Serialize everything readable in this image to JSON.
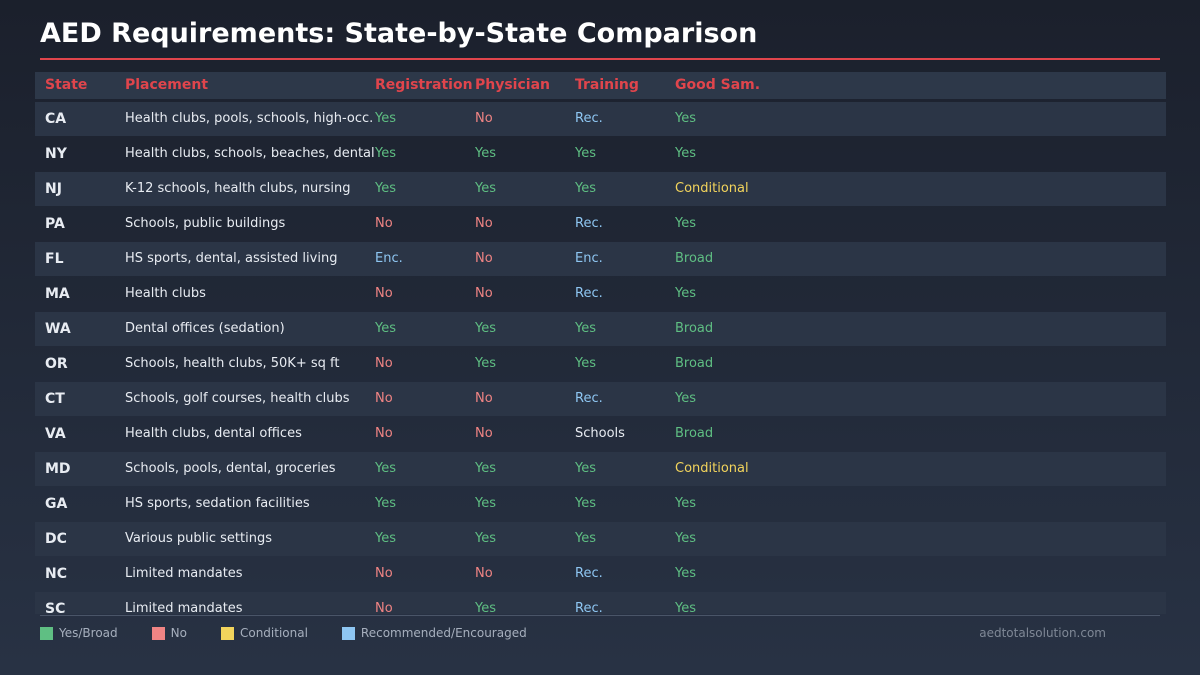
{
  "title": "AED Requirements: State-by-State Comparison",
  "table": {
    "header": [
      "State",
      "Placement",
      "Registration",
      "Physician",
      "Training",
      "Good Sam."
    ],
    "rows": [
      [
        "CA",
        "Health clubs, pools, schools, high-occ.",
        "Yes",
        "No",
        "Rec.",
        "Yes"
      ],
      [
        "NY",
        "Health clubs, schools, beaches, dental",
        "Yes",
        "Yes",
        "Yes",
        "Yes"
      ],
      [
        "NJ",
        "K-12 schools, health clubs, nursing",
        "Yes",
        "Yes",
        "Yes",
        "Conditional"
      ],
      [
        "PA",
        "Schools, public buildings",
        "No",
        "No",
        "Rec.",
        "Yes"
      ],
      [
        "FL",
        "HS sports, dental, assisted living",
        "Enc.",
        "No",
        "Enc.",
        "Broad"
      ],
      [
        "MA",
        "Health clubs",
        "No",
        "No",
        "Rec.",
        "Yes"
      ],
      [
        "WA",
        "Dental offices (sedation)",
        "Yes",
        "Yes",
        "Yes",
        "Broad"
      ],
      [
        "OR",
        "Schools, health clubs, 50K+ sq ft",
        "No",
        "Yes",
        "Yes",
        "Broad"
      ],
      [
        "CT",
        "Schools, golf courses, health clubs",
        "No",
        "No",
        "Rec.",
        "Yes"
      ],
      [
        "VA",
        "Health clubs, dental offices",
        "No",
        "No",
        "Schools",
        "Broad"
      ],
      [
        "MD",
        "Schools, pools, dental, groceries",
        "Yes",
        "Yes",
        "Yes",
        "Conditional"
      ],
      [
        "GA",
        "HS sports, sedation facilities",
        "Yes",
        "Yes",
        "Yes",
        "Yes"
      ],
      [
        "DC",
        "Various public settings",
        "Yes",
        "Yes",
        "Yes",
        "Yes"
      ],
      [
        "NC",
        "Limited mandates",
        "No",
        "No",
        "Rec.",
        "Yes"
      ],
      [
        "SC",
        "Limited mandates",
        "No",
        "Yes",
        "Rec.",
        "Yes"
      ]
    ],
    "cell_colors": [
      [
        "#e8ecf2",
        "#e8ecf2",
        "#5fbf83",
        "#f08484",
        "#8ec6f2",
        "#5fbf83"
      ],
      [
        "#e8ecf2",
        "#e8ecf2",
        "#5fbf83",
        "#5fbf83",
        "#5fbf83",
        "#5fbf83"
      ],
      [
        "#e8ecf2",
        "#e8ecf2",
        "#5fbf83",
        "#5fbf83",
        "#5fbf83",
        "#f2d45c"
      ],
      [
        "#e8ecf2",
        "#e8ecf2",
        "#f08484",
        "#f08484",
        "#8ec6f2",
        "#5fbf83"
      ],
      [
        "#e8ecf2",
        "#e8ecf2",
        "#8ec6f2",
        "#f08484",
        "#8ec6f2",
        "#5fbf83"
      ],
      [
        "#e8ecf2",
        "#e8ecf2",
        "#f08484",
        "#f08484",
        "#8ec6f2",
        "#5fbf83"
      ],
      [
        "#e8ecf2",
        "#e8ecf2",
        "#5fbf83",
        "#5fbf83",
        "#5fbf83",
        "#5fbf83"
      ],
      [
        "#e8ecf2",
        "#e8ecf2",
        "#f08484",
        "#5fbf83",
        "#5fbf83",
        "#5fbf83"
      ],
      [
        "#e8ecf2",
        "#e8ecf2",
        "#f08484",
        "#f08484",
        "#8ec6f2",
        "#5fbf83"
      ],
      [
        "#e8ecf2",
        "#e8ecf2",
        "#f08484",
        "#f08484",
        "#e8ecf2",
        "#5fbf83"
      ],
      [
        "#e8ecf2",
        "#e8ecf2",
        "#5fbf83",
        "#5fbf83",
        "#5fbf83",
        "#f2d45c"
      ],
      [
        "#e8ecf2",
        "#e8ecf2",
        "#5fbf83",
        "#5fbf83",
        "#5fbf83",
        "#5fbf83"
      ],
      [
        "#e8ecf2",
        "#e8ecf2",
        "#5fbf83",
        "#5fbf83",
        "#5fbf83",
        "#5fbf83"
      ],
      [
        "#e8ecf2",
        "#e8ecf2",
        "#f08484",
        "#f08484",
        "#8ec6f2",
        "#5fbf83"
      ],
      [
        "#e8ecf2",
        "#e8ecf2",
        "#f08484",
        "#5fbf83",
        "#8ec6f2",
        "#5fbf83"
      ]
    ]
  },
  "legend": [
    {
      "label": "Yes/Broad",
      "color": "#5fbf83"
    },
    {
      "label": "No",
      "color": "#f08484"
    },
    {
      "label": "Conditional",
      "color": "#f2d45c"
    },
    {
      "label": "Recommended/Encouraged",
      "color": "#8ec6f2"
    }
  ],
  "source": "aedtotalsolution.com"
}
